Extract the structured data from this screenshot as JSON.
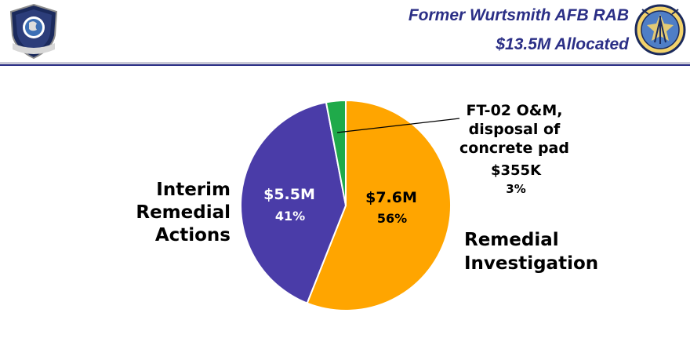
{
  "header": {
    "title_line1": "Former Wurtsmith AFB RAB",
    "title_line2": "$13.5M Allocated",
    "logo_left_text": "AIR FORCE IMSC",
    "logo_right_text": "AIR FORCE CIVIL ENGINEER CENTER"
  },
  "colors": {
    "title": "#2b2f86",
    "orange": "#ffa500",
    "purple": "#4a3ca8",
    "green": "#1faa4a"
  },
  "chart_data": {
    "type": "pie",
    "total": "$13.5M",
    "slices": [
      {
        "label_lines": [
          "Remedial",
          "Investigation"
        ],
        "amount": "$7.6M",
        "percent_label": "56%",
        "percent": 56,
        "color": "#ffa500"
      },
      {
        "label_lines": [
          "Interim",
          "Remedial",
          "Actions"
        ],
        "amount": "$5.5M",
        "percent_label": "41%",
        "percent": 41,
        "color": "#4a3ca8"
      },
      {
        "label_lines": [
          "FT-02 O&M,",
          "disposal of",
          "concrete pad"
        ],
        "amount": "$355K",
        "percent_label": "3%",
        "percent": 3,
        "color": "#1faa4a"
      }
    ]
  }
}
